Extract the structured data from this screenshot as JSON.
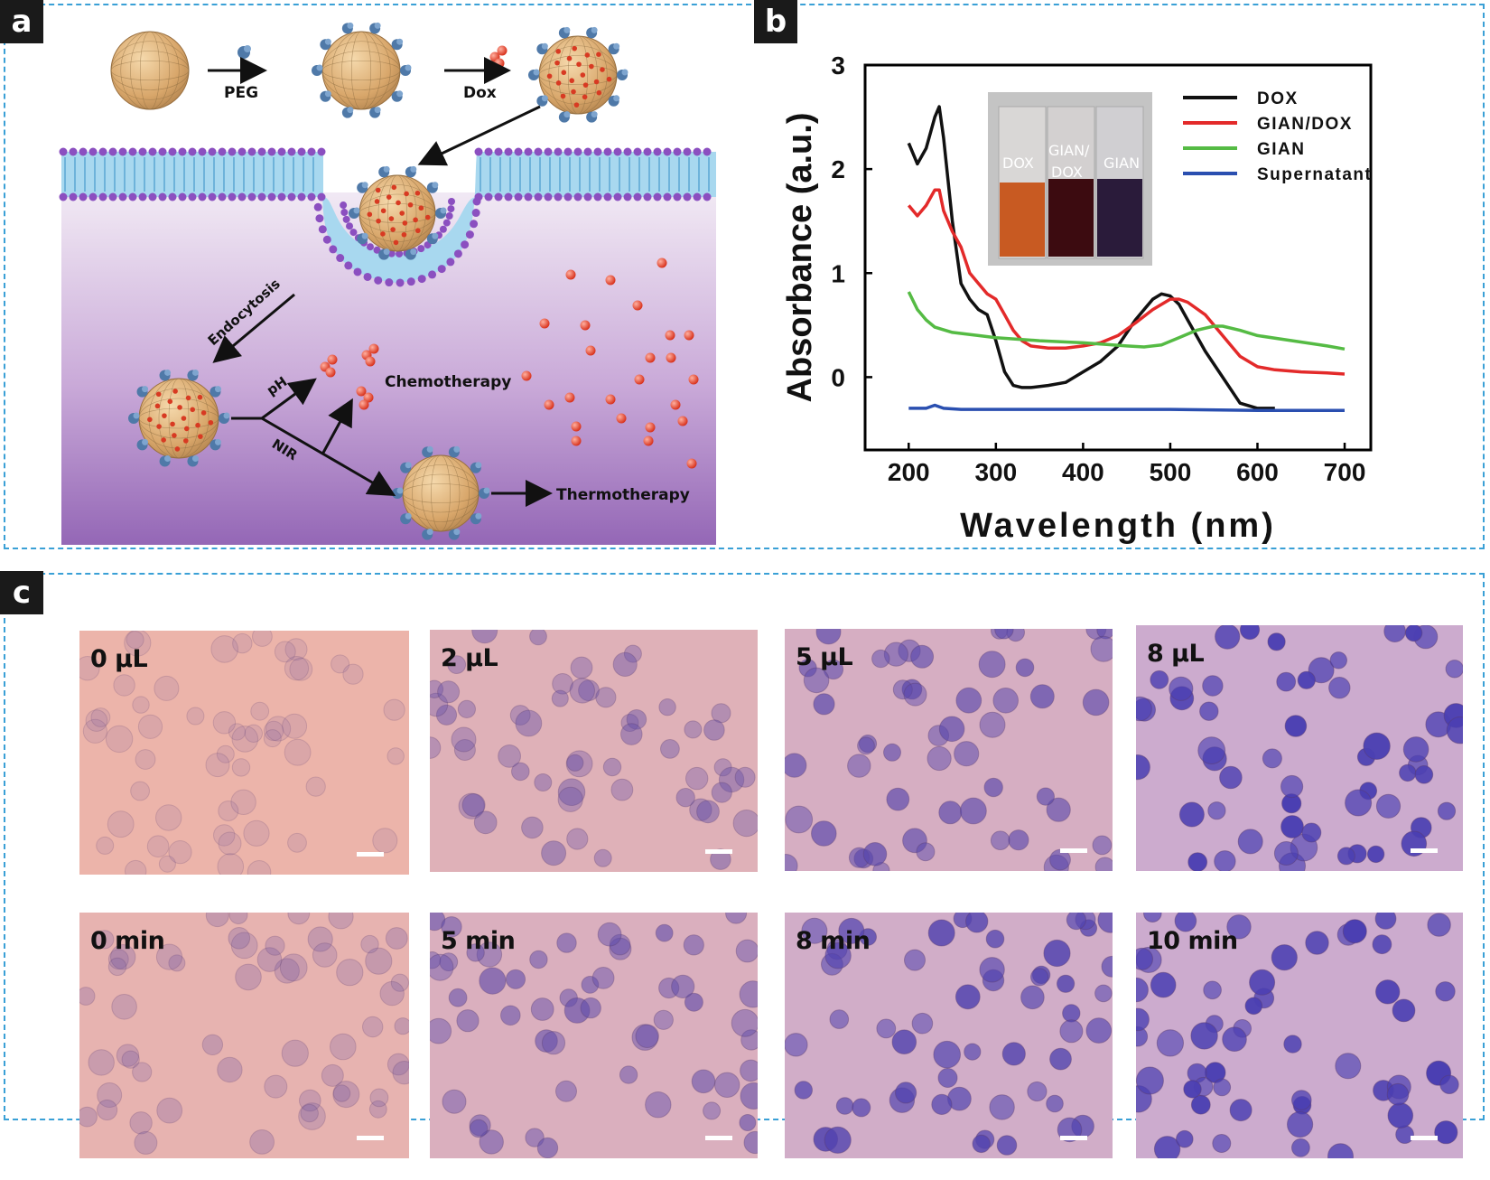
{
  "panels": {
    "a": {
      "letter": "a",
      "labels": {
        "peg": "PEG",
        "dox": "Dox",
        "endocytosis": "Endocytosis",
        "ph": "pH",
        "nir": "NIR",
        "chemotherapy": "Chemotherapy",
        "thermotherapy": "Thermotherapy"
      }
    },
    "b": {
      "letter": "b",
      "inset": {
        "vial_labels": [
          "DOX",
          "GIAN/",
          "DOX",
          "GIAN"
        ]
      }
    },
    "c": {
      "letter": "c",
      "dose_images": [
        {
          "label": "0 µL",
          "stain": 0.0
        },
        {
          "label": "2 µL",
          "stain": 0.35
        },
        {
          "label": "5 µL",
          "stain": 0.6
        },
        {
          "label": "8 µL",
          "stain": 0.9
        }
      ],
      "time_images": [
        {
          "label": "0 min",
          "stain": 0.15
        },
        {
          "label": "5 min",
          "stain": 0.5
        },
        {
          "label": "8 min",
          "stain": 0.75
        },
        {
          "label": "10 min",
          "stain": 0.9
        }
      ]
    }
  },
  "chart_data": {
    "type": "line",
    "xlabel": "Wavelength (nm)",
    "ylabel": "Absorbance (a.u.)",
    "xlim": [
      150,
      730
    ],
    "ylim": [
      -0.7,
      3.0
    ],
    "xticks": [
      200,
      300,
      400,
      500,
      600,
      700
    ],
    "yticks": [
      0,
      1,
      2,
      3
    ],
    "grid": false,
    "legend_position": "top-right",
    "series": [
      {
        "name": "DOX",
        "color": "#111111",
        "x": [
          200,
          210,
          220,
          230,
          235,
          240,
          250,
          260,
          270,
          280,
          290,
          300,
          310,
          320,
          330,
          340,
          360,
          380,
          400,
          420,
          440,
          460,
          480,
          490,
          500,
          510,
          520,
          540,
          560,
          580,
          600,
          620
        ],
        "y": [
          2.25,
          2.05,
          2.2,
          2.5,
          2.6,
          2.3,
          1.5,
          0.9,
          0.75,
          0.65,
          0.6,
          0.35,
          0.05,
          -0.08,
          -0.1,
          -0.1,
          -0.08,
          -0.05,
          0.05,
          0.15,
          0.3,
          0.55,
          0.75,
          0.8,
          0.78,
          0.7,
          0.55,
          0.25,
          0.0,
          -0.25,
          -0.3,
          -0.3
        ]
      },
      {
        "name": "GIAN/DOX",
        "color": "#e32a2a",
        "x": [
          200,
          210,
          220,
          230,
          235,
          240,
          250,
          260,
          270,
          280,
          290,
          300,
          310,
          320,
          330,
          340,
          360,
          380,
          400,
          420,
          440,
          460,
          480,
          500,
          510,
          520,
          540,
          560,
          580,
          600,
          620,
          650,
          680,
          700
        ],
        "y": [
          1.65,
          1.55,
          1.65,
          1.8,
          1.8,
          1.6,
          1.4,
          1.25,
          1.0,
          0.9,
          0.8,
          0.75,
          0.6,
          0.45,
          0.35,
          0.3,
          0.28,
          0.28,
          0.3,
          0.33,
          0.4,
          0.52,
          0.65,
          0.75,
          0.75,
          0.72,
          0.6,
          0.4,
          0.2,
          0.1,
          0.07,
          0.05,
          0.04,
          0.03
        ]
      },
      {
        "name": "GIAN",
        "color": "#55bb44",
        "x": [
          200,
          210,
          220,
          230,
          250,
          280,
          300,
          350,
          400,
          450,
          470,
          490,
          510,
          530,
          550,
          560,
          580,
          600,
          640,
          680,
          700
        ],
        "y": [
          0.82,
          0.65,
          0.55,
          0.48,
          0.43,
          0.4,
          0.38,
          0.35,
          0.33,
          0.3,
          0.29,
          0.31,
          0.38,
          0.45,
          0.49,
          0.49,
          0.45,
          0.4,
          0.35,
          0.3,
          0.27
        ]
      },
      {
        "name": "Supernatant",
        "color": "#2a4fb0",
        "x": [
          200,
          220,
          230,
          240,
          260,
          300,
          400,
          500,
          600,
          700
        ],
        "y": [
          -0.3,
          -0.3,
          -0.27,
          -0.3,
          -0.31,
          -0.31,
          -0.31,
          -0.31,
          -0.32,
          -0.32
        ]
      }
    ]
  }
}
